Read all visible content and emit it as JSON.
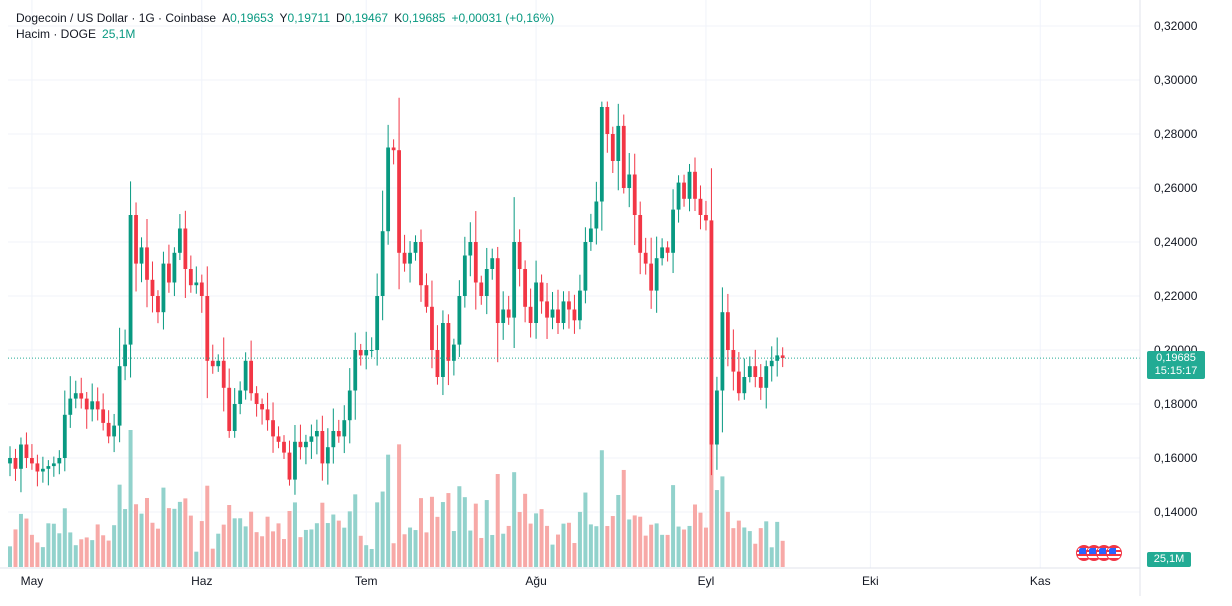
{
  "legend": {
    "symbol": "Dogecoin / US Dollar · 1G · Coinbase",
    "open_label": "A",
    "open": "0,19653",
    "high_label": "Y",
    "high": "0,19711",
    "low_label": "D",
    "low": "0,19467",
    "close_label": "K",
    "close": "0,19685",
    "change": "+0,00031 (+0,16%)",
    "volume_label": "Hacim · DOGE",
    "volume": "25,1M"
  },
  "last_price": {
    "value": "0,19685",
    "countdown": "15:15:17"
  },
  "volume_tag": "25,1M",
  "colors": {
    "up": "#089981",
    "down": "#f23645",
    "up_vol": "#92d2cc",
    "down_vol": "#f7a9a7",
    "grid": "#f0f3fa",
    "tag": "#22ab94"
  },
  "chart_data": {
    "type": "candlestick",
    "title": "Dogecoin / US Dollar · 1G · Coinbase",
    "y_axis": {
      "min": 0.12,
      "max": 0.32,
      "ticks": [
        0.14,
        0.16,
        0.18,
        0.2,
        0.22,
        0.24,
        0.26,
        0.28,
        0.3,
        0.32
      ],
      "tick_labels": [
        "0,14000",
        "0,16000",
        "0,18000",
        "0,20000",
        "0,22000",
        "0,24000",
        "0,26000",
        "0,28000",
        "0,30000",
        "0,32000"
      ]
    },
    "x_axis": {
      "labels": [
        "May",
        "Haz",
        "Tem",
        "Ağu",
        "Eyl",
        "Eki",
        "Kas"
      ],
      "label_day_index": [
        4,
        35,
        65,
        96,
        127,
        157,
        188
      ]
    },
    "volume_unit": "M DOGE",
    "close_series": [
      0.16,
      0.156,
      0.165,
      0.16,
      0.158,
      0.155,
      0.156,
      0.157,
      0.158,
      0.16,
      0.176,
      0.182,
      0.184,
      0.182,
      0.178,
      0.181,
      0.178,
      0.173,
      0.168,
      0.172,
      0.194,
      0.202,
      0.25,
      0.232,
      0.238,
      0.226,
      0.22,
      0.214,
      0.232,
      0.225,
      0.236,
      0.245,
      0.23,
      0.224,
      0.225,
      0.22,
      0.196,
      0.194,
      0.196,
      0.186,
      0.17,
      0.18,
      0.185,
      0.196,
      0.184,
      0.18,
      0.178,
      0.174,
      0.168,
      0.166,
      0.162,
      0.152,
      0.166,
      0.164,
      0.166,
      0.168,
      0.17,
      0.158,
      0.164,
      0.17,
      0.168,
      0.174,
      0.185,
      0.2,
      0.198,
      0.2,
      0.2,
      0.22,
      0.244,
      0.275,
      0.274,
      0.236,
      0.232,
      0.236,
      0.24,
      0.224,
      0.216,
      0.2,
      0.19,
      0.21,
      0.196,
      0.202,
      0.22,
      0.235,
      0.24,
      0.225,
      0.22,
      0.23,
      0.234,
      0.21,
      0.215,
      0.212,
      0.24,
      0.23,
      0.216,
      0.21,
      0.225,
      0.218,
      0.212,
      0.215,
      0.21,
      0.218,
      0.215,
      0.211,
      0.222,
      0.24,
      0.245,
      0.255,
      0.29,
      0.28,
      0.27,
      0.283,
      0.26,
      0.265,
      0.25,
      0.236,
      0.232,
      0.222,
      0.234,
      0.238,
      0.236,
      0.252,
      0.262,
      0.256,
      0.266,
      0.256,
      0.25,
      0.248,
      0.165,
      0.185,
      0.214,
      0.2,
      0.192,
      0.184,
      0.19,
      0.194,
      0.19,
      0.186,
      0.194,
      0.196,
      0.198,
      0.197
    ]
  }
}
